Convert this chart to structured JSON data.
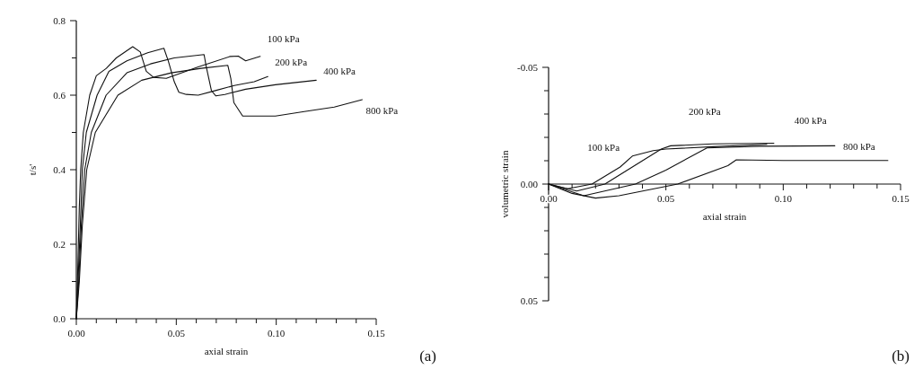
{
  "chart_data": [
    {
      "type": "line",
      "xlabel": "axial strain",
      "ylabel": "t/s'",
      "xlim": [
        0,
        0.15
      ],
      "ylim": [
        0,
        0.8
      ],
      "xticks": [
        {
          "value": 0,
          "label": "0.00"
        },
        {
          "value": 0.01,
          "label": null
        },
        {
          "value": 0.02,
          "label": null
        },
        {
          "value": 0.03,
          "label": null
        },
        {
          "value": 0.04,
          "label": null
        },
        {
          "value": 0.05,
          "label": "0.05"
        },
        {
          "value": 0.06,
          "label": null
        },
        {
          "value": 0.07,
          "label": null
        },
        {
          "value": 0.08,
          "label": null
        },
        {
          "value": 0.09,
          "label": null
        },
        {
          "value": 0.1,
          "label": "0.10"
        },
        {
          "value": 0.11,
          "label": null
        },
        {
          "value": 0.12,
          "label": null
        },
        {
          "value": 0.13,
          "label": null
        },
        {
          "value": 0.14,
          "label": null
        },
        {
          "value": 0.15,
          "label": "0.15"
        }
      ],
      "yticks": [
        {
          "value": 0,
          "label": "0.0"
        },
        {
          "value": 0.1,
          "label": null
        },
        {
          "value": 0.2,
          "label": "0.2"
        },
        {
          "value": 0.3,
          "label": null
        },
        {
          "value": 0.4,
          "label": "0.4"
        },
        {
          "value": 0.5,
          "label": null
        },
        {
          "value": 0.6,
          "label": "0.6"
        },
        {
          "value": 0.7,
          "label": null
        },
        {
          "value": 0.8,
          "label": "0.8"
        }
      ],
      "grid": false,
      "legend": false,
      "marker": "none",
      "line_style": "solid",
      "annotations": [
        "(a)"
      ],
      "series": [
        {
          "name": "100 kPa",
          "color": "#111111",
          "x": [
            0,
            0.0008,
            0.0015,
            0.0022,
            0.0035,
            0.0067,
            0.01,
            0.015,
            0.02,
            0.0282,
            0.032,
            0.035,
            0.0386,
            0.045,
            0.061,
            0.077,
            0.081,
            0.0847,
            0.092
          ],
          "values": [
            0,
            0.15,
            0.3,
            0.4,
            0.5,
            0.6,
            0.652,
            0.672,
            0.7,
            0.73,
            0.716,
            0.664,
            0.648,
            0.645,
            0.676,
            0.704,
            0.705,
            0.692,
            0.704
          ]
        },
        {
          "name": "200 kPa",
          "color": "#111111",
          "x": [
            0,
            0.001,
            0.002,
            0.003,
            0.005,
            0.0104,
            0.0163,
            0.0253,
            0.0357,
            0.0438,
            0.046,
            0.049,
            0.0513,
            0.055,
            0.061,
            0.07,
            0.079,
            0.089,
            0.0958
          ],
          "values": [
            0,
            0.12,
            0.25,
            0.4,
            0.5,
            0.6,
            0.664,
            0.692,
            0.714,
            0.726,
            0.692,
            0.636,
            0.608,
            0.602,
            0.6,
            0.613,
            0.626,
            0.636,
            0.65
          ]
        },
        {
          "name": "400 kPa",
          "color": "#111111",
          "x": [
            0,
            0.0012,
            0.0025,
            0.0042,
            0.0075,
            0.0149,
            0.0253,
            0.0371,
            0.049,
            0.0639,
            0.065,
            0.0676,
            0.0698,
            0.0743,
            0.0847,
            0.0996,
            0.12
          ],
          "values": [
            0,
            0.1,
            0.25,
            0.4,
            0.5,
            0.6,
            0.66,
            0.684,
            0.7,
            0.709,
            0.676,
            0.612,
            0.598,
            0.602,
            0.616,
            0.628,
            0.64
          ]
        },
        {
          "name": "800 kPa",
          "color": "#111111",
          "x": [
            0,
            0.0015,
            0.003,
            0.0052,
            0.0095,
            0.0208,
            0.0327,
            0.0475,
            0.0624,
            0.0758,
            0.0773,
            0.0788,
            0.0832,
            0.0996,
            0.114,
            0.129,
            0.143
          ],
          "values": [
            0,
            0.1,
            0.25,
            0.4,
            0.5,
            0.6,
            0.64,
            0.66,
            0.672,
            0.68,
            0.644,
            0.58,
            0.544,
            0.544,
            0.556,
            0.568,
            0.588
          ]
        }
      ]
    },
    {
      "type": "line",
      "xlabel": "axial strain",
      "ylabel": "volumetric strain",
      "xlim": [
        0,
        0.15
      ],
      "ylim": [
        0.05,
        -0.05
      ],
      "xticks": [
        {
          "value": 0,
          "label": "0.00"
        },
        {
          "value": 0.01,
          "label": null
        },
        {
          "value": 0.02,
          "label": null
        },
        {
          "value": 0.03,
          "label": null
        },
        {
          "value": 0.04,
          "label": null
        },
        {
          "value": 0.05,
          "label": "0.05"
        },
        {
          "value": 0.06,
          "label": null
        },
        {
          "value": 0.07,
          "label": null
        },
        {
          "value": 0.08,
          "label": null
        },
        {
          "value": 0.09,
          "label": null
        },
        {
          "value": 0.1,
          "label": "0.10"
        },
        {
          "value": 0.11,
          "label": null
        },
        {
          "value": 0.12,
          "label": null
        },
        {
          "value": 0.13,
          "label": null
        },
        {
          "value": 0.14,
          "label": null
        },
        {
          "value": 0.15,
          "label": "0.15"
        }
      ],
      "yticks": [
        {
          "value": -0.05,
          "label": "-0.05"
        },
        {
          "value": -0.04,
          "label": null
        },
        {
          "value": -0.03,
          "label": null
        },
        {
          "value": -0.02,
          "label": null
        },
        {
          "value": -0.01,
          "label": null
        },
        {
          "value": 0,
          "label": "0.00"
        },
        {
          "value": 0.01,
          "label": null
        },
        {
          "value": 0.02,
          "label": null
        },
        {
          "value": 0.03,
          "label": null
        },
        {
          "value": 0.04,
          "label": null
        },
        {
          "value": 0.05,
          "label": "0.05"
        }
      ],
      "grid": false,
      "legend": false,
      "marker": "none",
      "line_style": "solid",
      "annotations": [
        "(b)"
      ],
      "series": [
        {
          "name": "100 kPa",
          "color": "#111111",
          "x": [
            0,
            0.008,
            0.0185,
            0.0305,
            0.0357,
            0.0446,
            0.05,
            0.07,
            0.093
          ],
          "values": [
            0,
            0.002,
            0,
            -0.0073,
            -0.012,
            -0.0143,
            -0.015,
            -0.016,
            -0.017
          ]
        },
        {
          "name": "200 kPa",
          "color": "#111111",
          "x": [
            0,
            0.012,
            0.024,
            0.048,
            0.052,
            0.07,
            0.096
          ],
          "values": [
            0,
            0.003,
            0,
            -0.015,
            -0.0164,
            -0.0172,
            -0.0175
          ]
        },
        {
          "name": "400 kPa",
          "color": "#111111",
          "x": [
            0,
            0.015,
            0.037,
            0.05,
            0.0675,
            0.09,
            0.122
          ],
          "values": [
            0,
            0.005,
            0,
            -0.006,
            -0.0155,
            -0.0162,
            -0.0164
          ]
        },
        {
          "name": "800 kPa",
          "color": "#111111",
          "x": [
            0,
            0.01,
            0.02,
            0.03,
            0.055,
            0.0764,
            0.08,
            0.1,
            0.1446
          ],
          "values": [
            0,
            0.004,
            0.006,
            0.005,
            0,
            -0.0079,
            -0.0104,
            -0.0101,
            -0.0101
          ]
        }
      ]
    }
  ]
}
